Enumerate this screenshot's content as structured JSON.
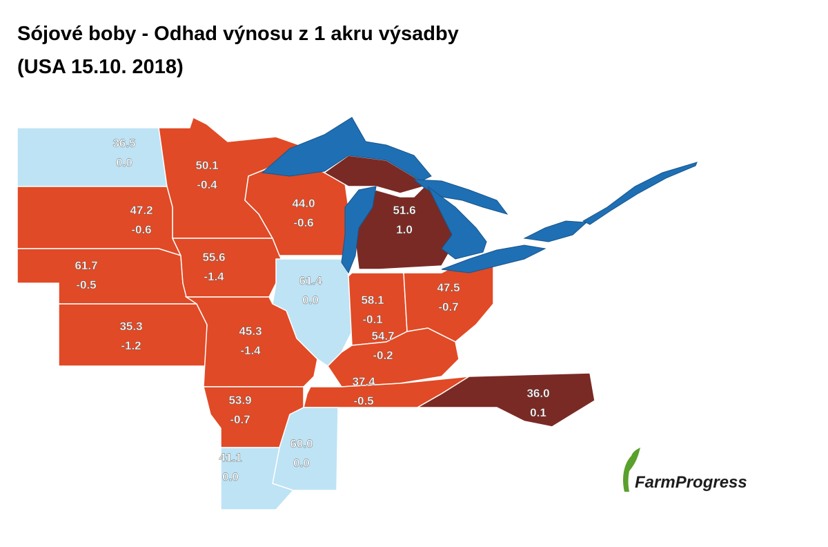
{
  "title": [
    "Sójové boby - Odhad výnosu z 1 akru výsadby",
    "(USA 15.10. 2018)"
  ],
  "logo": "FarmProgress",
  "regions": [
    {
      "yield": "36.5",
      "change": "0.0",
      "color": "#bde3f5"
    },
    {
      "yield": "50.1",
      "change": "-0.4",
      "color": "#e04a26"
    },
    {
      "yield": "47.2",
      "change": "-0.6",
      "color": "#e04a26"
    },
    {
      "yield": "44.0",
      "change": "-0.6",
      "color": "#e04a26"
    },
    {
      "yield": "51.6",
      "change": "1.0",
      "color": "#7a2a24"
    },
    {
      "yield": "61.7",
      "change": "-0.5",
      "color": "#e04a26"
    },
    {
      "yield": "55.6",
      "change": "-1.4",
      "color": "#e04a26"
    },
    {
      "yield": "61.4",
      "change": "0.0",
      "color": "#bde3f5"
    },
    {
      "yield": "58.1",
      "change": "-0.1",
      "color": "#e04a26"
    },
    {
      "yield": "47.5",
      "change": "-0.7",
      "color": "#e04a26"
    },
    {
      "yield": "35.3",
      "change": "-1.2",
      "color": "#e04a26"
    },
    {
      "yield": "45.3",
      "change": "-1.4",
      "color": "#e04a26"
    },
    {
      "yield": "54.7",
      "change": "-0.2",
      "color": "#e04a26"
    },
    {
      "yield": "37.4",
      "change": "-0.5",
      "color": "#e04a26"
    },
    {
      "yield": "36.0",
      "change": "0.1",
      "color": "#7a2a24"
    },
    {
      "yield": "53.9",
      "change": "-0.7",
      "color": "#e04a26"
    },
    {
      "yield": "60.0",
      "change": "0.0",
      "color": "#bde3f5"
    },
    {
      "yield": "41.1",
      "change": "0.0",
      "color": "#bde3f5"
    }
  ]
}
